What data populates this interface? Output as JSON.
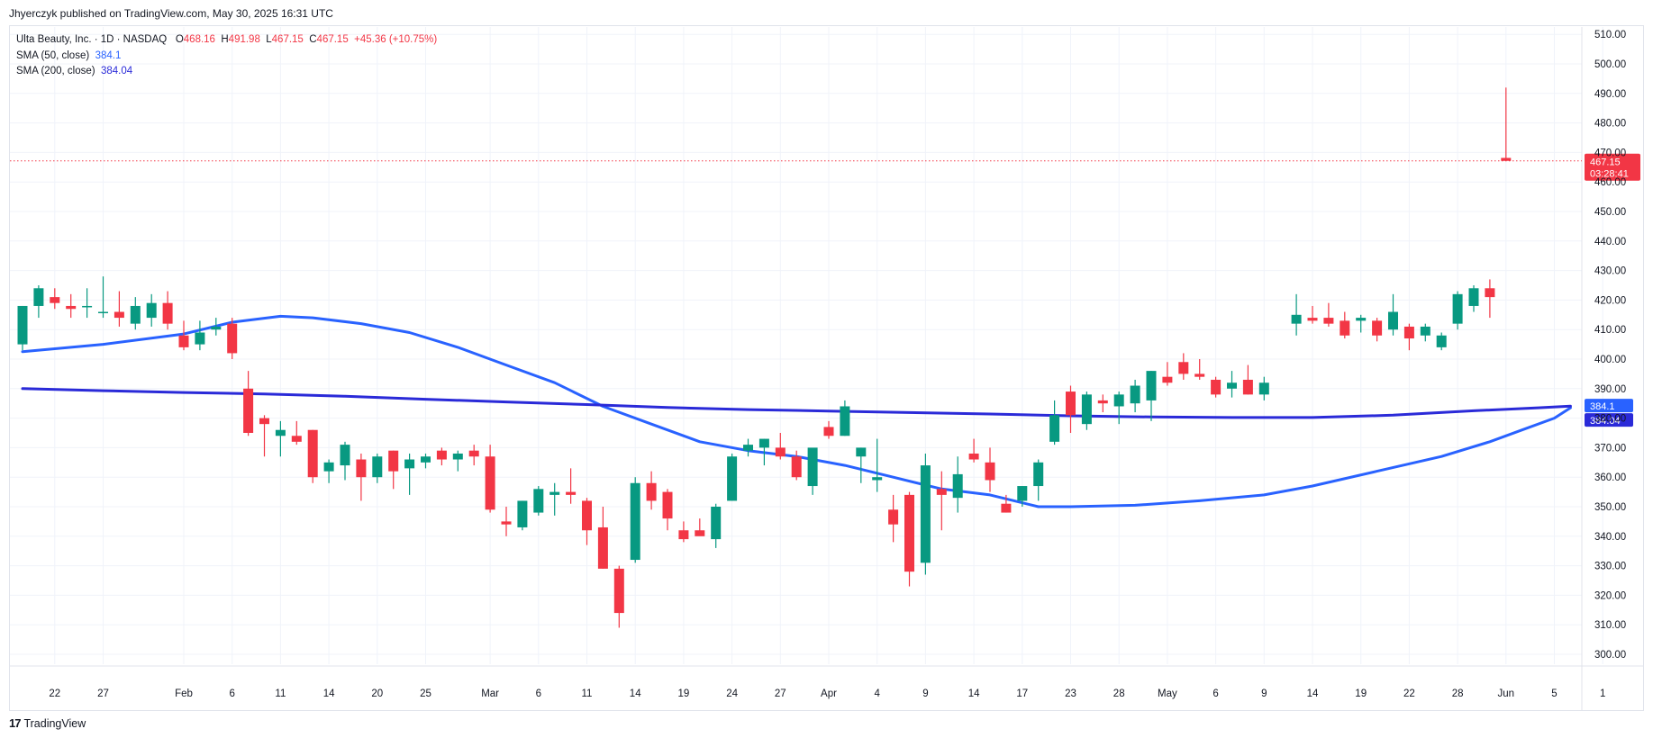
{
  "publisher_line": "Jhyerczyk published on TradingView.com, May 30, 2025 16:31 UTC",
  "brand": "TradingView",
  "legend": {
    "symbol": "Ulta Beauty, Inc. · 1D · NASDAQ",
    "o_label": "O",
    "o_value": "468.16",
    "h_label": "H",
    "h_value": "491.98",
    "l_label": "L",
    "l_value": "467.15",
    "c_label": "C",
    "c_value": "467.15",
    "change": "+45.36 (+10.75%)",
    "sma50_label": "SMA (50, close)",
    "sma50_value": "384.1",
    "sma200_label": "SMA (200, close)",
    "sma200_value": "384.04"
  },
  "colors": {
    "up": "#089981",
    "down": "#f23645",
    "sma50": "#2962ff",
    "sma200": "#2a2ad8",
    "grid": "#f0f3fa"
  },
  "price_badge": {
    "price": "467.15",
    "countdown": "03:28:41"
  },
  "chart_data": {
    "type": "candlestick",
    "yticks": [
      300,
      310,
      320,
      330,
      340,
      350,
      360,
      370,
      380,
      390,
      400,
      410,
      420,
      430,
      440,
      450,
      460,
      470,
      480,
      490,
      500,
      510
    ],
    "ytick_labels": [
      "300.00",
      "310.00",
      "320.00",
      "330.00",
      "340.00",
      "350.00",
      "360.00",
      "370.00",
      "380.00",
      "390.00",
      "400.00",
      "410.00",
      "420.00",
      "430.00",
      "440.00",
      "450.00",
      "460.00",
      "470.00",
      "480.00",
      "490.00",
      "500.00",
      "510.00"
    ],
    "ylim": [
      290,
      512
    ],
    "xticks": [
      {
        "i": 2,
        "label": "22"
      },
      {
        "i": 5,
        "label": "27"
      },
      {
        "i": 10,
        "label": "Feb"
      },
      {
        "i": 13,
        "label": "6"
      },
      {
        "i": 16,
        "label": "11"
      },
      {
        "i": 19,
        "label": "14"
      },
      {
        "i": 22,
        "label": "20"
      },
      {
        "i": 25,
        "label": "25"
      },
      {
        "i": 29,
        "label": "Mar"
      },
      {
        "i": 32,
        "label": "6"
      },
      {
        "i": 35,
        "label": "11"
      },
      {
        "i": 38,
        "label": "14"
      },
      {
        "i": 41,
        "label": "19"
      },
      {
        "i": 44,
        "label": "24"
      },
      {
        "i": 47,
        "label": "27"
      },
      {
        "i": 50,
        "label": "Apr"
      },
      {
        "i": 53,
        "label": "4"
      },
      {
        "i": 56,
        "label": "9"
      },
      {
        "i": 59,
        "label": "14"
      },
      {
        "i": 62,
        "label": "17"
      },
      {
        "i": 65,
        "label": "23"
      },
      {
        "i": 68,
        "label": "28"
      },
      {
        "i": 71,
        "label": "May"
      },
      {
        "i": 74,
        "label": "6"
      },
      {
        "i": 77,
        "label": "9"
      },
      {
        "i": 80,
        "label": "14"
      },
      {
        "i": 83,
        "label": "19"
      },
      {
        "i": 86,
        "label": "22"
      },
      {
        "i": 89,
        "label": "28"
      },
      {
        "i": 92,
        "label": "Jun"
      },
      {
        "i": 95,
        "label": "5"
      },
      {
        "i": 98,
        "label": "1"
      }
    ],
    "candles": [
      [
        405,
        418,
        403,
        418
      ],
      [
        418,
        425,
        414,
        424
      ],
      [
        421,
        424,
        417,
        419
      ],
      [
        418,
        422,
        414,
        417
      ],
      [
        418,
        424,
        414,
        418
      ],
      [
        416,
        428,
        414,
        416
      ],
      [
        416,
        423,
        411,
        414
      ],
      [
        412,
        421,
        410,
        418
      ],
      [
        414,
        422,
        411,
        419
      ],
      [
        419,
        423,
        410,
        412
      ],
      [
        408,
        413,
        403,
        404
      ],
      [
        405,
        413,
        403,
        409
      ],
      [
        410,
        414,
        408,
        411
      ],
      [
        412,
        414,
        400,
        402
      ],
      [
        390,
        396,
        374,
        375
      ],
      [
        380,
        381,
        367,
        378
      ],
      [
        374,
        379,
        367,
        376
      ],
      [
        374,
        379,
        371,
        372
      ],
      [
        376,
        376,
        358,
        360
      ],
      [
        362,
        366,
        358,
        365
      ],
      [
        364,
        372,
        359,
        371
      ],
      [
        366,
        368,
        352,
        360
      ],
      [
        360,
        368,
        358,
        367
      ],
      [
        369,
        369,
        356,
        362
      ],
      [
        363,
        368,
        354,
        366
      ],
      [
        365,
        368,
        363,
        367
      ],
      [
        369,
        370,
        364,
        366
      ],
      [
        366,
        369,
        362,
        368
      ],
      [
        369,
        371,
        364,
        367
      ],
      [
        367,
        371,
        348,
        349
      ],
      [
        345,
        350,
        340,
        344
      ],
      [
        343,
        352,
        342,
        352
      ],
      [
        348,
        357,
        347,
        356
      ],
      [
        354,
        358,
        347,
        355
      ],
      [
        355,
        363,
        351,
        354
      ],
      [
        352,
        353,
        337,
        342
      ],
      [
        343,
        350,
        329,
        329
      ],
      [
        329,
        330,
        309,
        314
      ],
      [
        332,
        360,
        331,
        358
      ],
      [
        358,
        362,
        349,
        352
      ],
      [
        355,
        356,
        342,
        346
      ],
      [
        342,
        345,
        338,
        339
      ],
      [
        342,
        346,
        341,
        340
      ],
      [
        339,
        351,
        336,
        350
      ],
      [
        352,
        368,
        352,
        367
      ],
      [
        369,
        373,
        367,
        371
      ],
      [
        370,
        373,
        364,
        373
      ],
      [
        370,
        375,
        366,
        367
      ],
      [
        367,
        369,
        359,
        360
      ],
      [
        357,
        369,
        354,
        370
      ],
      [
        377,
        379,
        373,
        374
      ],
      [
        374,
        386,
        374,
        384
      ],
      [
        367,
        370,
        358,
        370
      ],
      [
        359,
        373,
        355,
        360
      ],
      [
        349,
        354,
        338,
        344
      ],
      [
        354,
        355,
        323,
        328
      ],
      [
        331,
        368,
        327,
        364
      ],
      [
        356,
        362,
        342,
        354
      ],
      [
        353,
        367,
        348,
        361
      ],
      [
        368,
        373,
        365,
        366
      ],
      [
        365,
        370,
        355,
        359
      ],
      [
        351,
        354,
        348,
        348
      ],
      [
        352,
        357,
        350,
        357
      ],
      [
        357,
        366,
        352,
        365
      ],
      [
        372,
        386,
        371,
        381
      ],
      [
        389,
        391,
        375,
        381
      ],
      [
        378,
        389,
        376,
        388
      ],
      [
        386,
        388,
        382,
        385
      ],
      [
        384,
        389,
        378,
        388
      ],
      [
        385,
        393,
        382,
        391
      ],
      [
        386,
        396,
        379,
        396
      ],
      [
        394,
        399,
        391,
        392
      ],
      [
        399,
        402,
        393,
        395
      ],
      [
        395,
        400,
        393,
        394
      ],
      [
        393,
        394,
        387,
        388
      ],
      [
        390,
        396,
        387,
        392
      ],
      [
        393,
        398,
        388,
        388
      ],
      [
        388,
        394,
        386,
        392
      ],
      [
        null,
        null,
        null,
        null
      ],
      [
        412,
        422,
        408,
        415
      ],
      [
        414,
        418,
        412,
        413
      ],
      [
        414,
        419,
        411,
        412
      ],
      [
        413,
        416,
        407,
        408
      ],
      [
        413,
        415,
        409,
        414
      ],
      [
        413,
        414,
        406,
        408
      ],
      [
        410,
        422,
        408,
        416
      ],
      [
        411,
        412,
        403,
        407
      ],
      [
        408,
        412,
        406,
        411
      ],
      [
        404,
        409,
        403,
        408
      ],
      [
        412,
        423,
        410,
        422
      ],
      [
        418,
        425,
        416,
        424
      ],
      [
        424,
        427,
        414,
        421
      ],
      [
        468.16,
        491.98,
        467.15,
        467.15
      ]
    ],
    "series": [
      {
        "name": "SMA (50, close)",
        "color": "#2962ff",
        "points": [
          [
            0,
            402.5
          ],
          [
            5,
            405
          ],
          [
            10,
            408.5
          ],
          [
            13,
            412.5
          ],
          [
            16,
            414.5
          ],
          [
            18,
            414
          ],
          [
            21,
            412
          ],
          [
            24,
            409
          ],
          [
            27,
            404
          ],
          [
            30,
            398
          ],
          [
            33,
            392
          ],
          [
            36,
            384
          ],
          [
            39,
            378
          ],
          [
            42,
            372
          ],
          [
            45,
            369
          ],
          [
            48,
            367
          ],
          [
            51,
            364
          ],
          [
            54,
            360
          ],
          [
            57,
            356
          ],
          [
            60,
            354
          ],
          [
            63,
            350
          ],
          [
            65,
            350
          ],
          [
            69,
            350.5
          ],
          [
            73,
            352
          ],
          [
            77,
            354
          ],
          [
            80,
            357
          ],
          [
            84,
            362
          ],
          [
            88,
            367
          ],
          [
            91,
            372
          ],
          [
            93,
            376
          ],
          [
            95,
            380
          ],
          [
            96,
            383.5
          ]
        ]
      },
      {
        "name": "SMA (200, close)",
        "color": "#2a2ad8",
        "points": [
          [
            0,
            390
          ],
          [
            5,
            389.3
          ],
          [
            10,
            388.7
          ],
          [
            15,
            388.2
          ],
          [
            20,
            387.4
          ],
          [
            25,
            386.4
          ],
          [
            30,
            385.5
          ],
          [
            35,
            384.6
          ],
          [
            40,
            383.6
          ],
          [
            45,
            382.9
          ],
          [
            50,
            382.4
          ],
          [
            55,
            381.9
          ],
          [
            60,
            381.4
          ],
          [
            65,
            380.8
          ],
          [
            70,
            380.4
          ],
          [
            75,
            380.2
          ],
          [
            80,
            380.2
          ],
          [
            85,
            381
          ],
          [
            90,
            382.5
          ],
          [
            94,
            383.5
          ],
          [
            96,
            384.04
          ]
        ]
      }
    ],
    "price_line": 467.15,
    "sma_badges": [
      {
        "value": "384.1",
        "color": "#2962ff"
      },
      {
        "value": "384.04",
        "color": "#2a2ad8"
      }
    ]
  }
}
